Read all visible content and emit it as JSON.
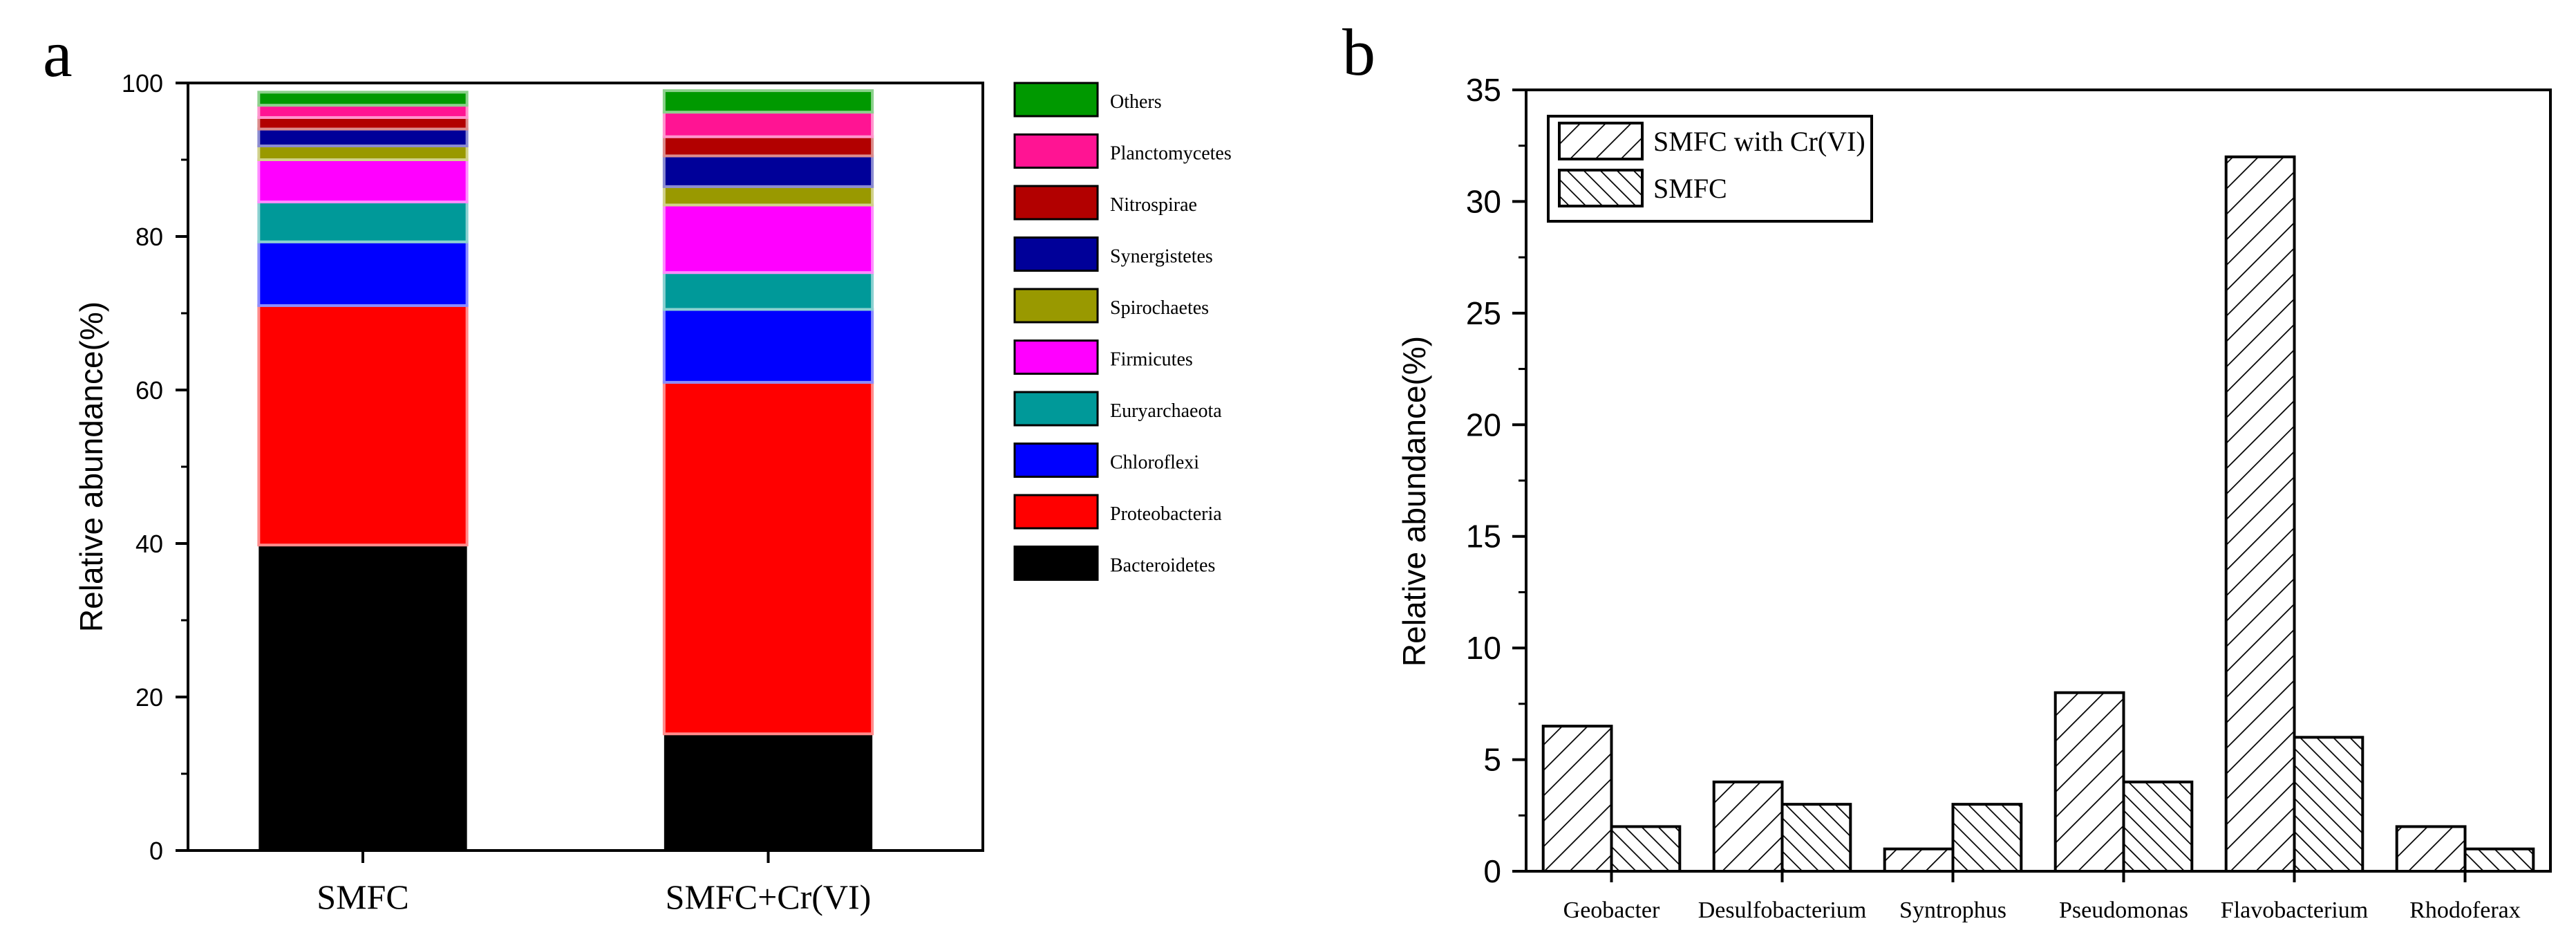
{
  "panel_labels": [
    "a",
    "b"
  ],
  "chart_data": [
    {
      "type": "bar",
      "stacked": true,
      "categories": [
        "SMFC",
        "SMFC+Cr(VI)"
      ],
      "ylabel": "Relative abundance(%)",
      "ylim": [
        0,
        100
      ],
      "yticks": [
        0,
        20,
        40,
        60,
        80,
        100
      ],
      "legend_position": "right",
      "series": [
        {
          "name": "Bacteroidetes",
          "color": "#000000",
          "values": [
            39.8,
            15.2
          ]
        },
        {
          "name": "Proteobacteria",
          "color": "#ff0000",
          "values": [
            31.2,
            45.8
          ]
        },
        {
          "name": "Chloroflexi",
          "color": "#0000ff",
          "values": [
            8.3,
            9.5
          ]
        },
        {
          "name": "Euryarchaeota",
          "color": "#009999",
          "values": [
            5.2,
            4.8
          ]
        },
        {
          "name": "Firmicutes",
          "color": "#ff00ff",
          "values": [
            5.5,
            8.8
          ]
        },
        {
          "name": "Spirochaetes",
          "color": "#999900",
          "values": [
            1.8,
            2.4
          ]
        },
        {
          "name": "Synergistetes",
          "color": "#000099",
          "values": [
            2.2,
            4.0
          ]
        },
        {
          "name": "Nitrospirae",
          "color": "#b20000",
          "values": [
            1.5,
            2.5
          ]
        },
        {
          "name": "Planctomycetes",
          "color": "#ff1493",
          "values": [
            1.6,
            3.2
          ]
        },
        {
          "name": "Others",
          "color": "#009900",
          "values": [
            1.7,
            2.8
          ]
        }
      ]
    },
    {
      "type": "bar",
      "categories": [
        "Geobacter",
        "Desulfobacterium",
        "Syntrophus",
        "Pseudomonas",
        "Flavobacterium",
        "Rhodoferax"
      ],
      "ylabel": "Relative abundance(%)",
      "ylim": [
        0,
        35
      ],
      "yticks": [
        0,
        5,
        10,
        15,
        20,
        25,
        30,
        35
      ],
      "legend_position": "top-left",
      "series": [
        {
          "name": "SMFC with Cr(VI)",
          "pattern": "forward-hatch",
          "values": [
            6.5,
            4.0,
            1.0,
            8.0,
            32.0,
            2.0
          ]
        },
        {
          "name": "SMFC",
          "pattern": "back-hatch",
          "values": [
            2.0,
            3.0,
            3.0,
            4.0,
            6.0,
            1.0
          ]
        }
      ]
    }
  ]
}
